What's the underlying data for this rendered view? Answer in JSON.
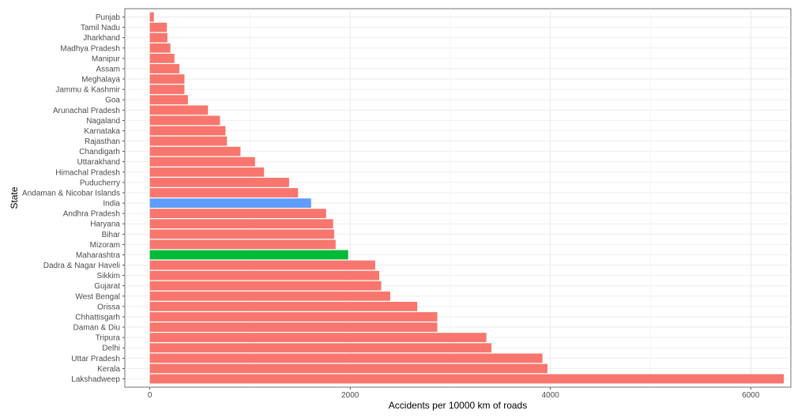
{
  "chart_data": {
    "type": "bar",
    "orientation": "horizontal",
    "xlabel": "Accidents per 10000 km of roads",
    "ylabel": "State",
    "xlim": [
      -250,
      6400
    ],
    "xticks": [
      0,
      2000,
      4000,
      6000
    ],
    "grid": true,
    "legend": "none",
    "colors": {
      "default": "#F8766D",
      "India": "#619CFF",
      "Maharashtra": "#00BA38"
    },
    "categories": [
      "Punjab",
      "Tamil Nadu",
      "Jharkhand",
      "Madhya Pradesh",
      "Manipur",
      "Assam",
      "Meghalaya",
      "Jammu & Kashmir",
      "Goa",
      "Arunachal Pradesh",
      "Nagaland",
      "Karnataka",
      "Rajasthan",
      "Chandigarh",
      "Uttarakhand",
      "Himachal Pradesh",
      "Puducherry",
      "Andaman & Nicobar Islands",
      "India",
      "Andhra Pradesh",
      "Haryana",
      "Bihar",
      "Mizoram",
      "Maharashtra",
      "Dadra & Nagar Haveli",
      "Sikkim",
      "Gujarat",
      "West Bengal",
      "Orissa",
      "Chhattisgarh",
      "Daman & Diu",
      "Tripura",
      "Delhi",
      "Uttar Pradesh",
      "Kerala",
      "Lakshadweep"
    ],
    "values": [
      40,
      170,
      175,
      205,
      245,
      295,
      345,
      345,
      380,
      580,
      700,
      755,
      770,
      905,
      1050,
      1140,
      1390,
      1480,
      1610,
      1760,
      1830,
      1840,
      1855,
      1980,
      2250,
      2290,
      2310,
      2400,
      2670,
      2870,
      2870,
      3360,
      3410,
      3920,
      3970,
      6330
    ]
  }
}
